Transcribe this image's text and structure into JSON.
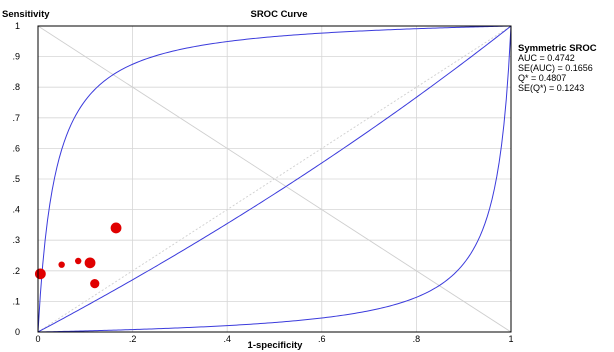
{
  "chart_data": {
    "type": "scatter",
    "title": "SROC Curve",
    "xlabel": "1-specificity",
    "ylabel": "Sensitivity",
    "xlim": [
      0,
      1
    ],
    "ylim": [
      0,
      1
    ],
    "x_ticks": [
      "0",
      ".2",
      ".4",
      ".6",
      ".8",
      "1"
    ],
    "y_ticks": [
      "0",
      ".1",
      ".2",
      ".3",
      ".4",
      ".5",
      ".6",
      ".7",
      ".8",
      ".9",
      "1"
    ],
    "grid": true,
    "legend": {
      "title": "Symmetric SROC",
      "lines": [
        "AUC = 0.4742",
        "SE(AUC) = 0.1656",
        "Q* = 0.4807",
        "SE(Q*) = 0.1243"
      ],
      "placement": "right"
    },
    "points": [
      {
        "x": 0.005,
        "y": 0.19,
        "weight": "large"
      },
      {
        "x": 0.05,
        "y": 0.22,
        "weight": "small"
      },
      {
        "x": 0.085,
        "y": 0.232,
        "weight": "small"
      },
      {
        "x": 0.11,
        "y": 0.226,
        "weight": "large"
      },
      {
        "x": 0.12,
        "y": 0.158,
        "weight": "medium"
      },
      {
        "x": 0.165,
        "y": 0.34,
        "weight": "large"
      }
    ],
    "curves": {
      "color": "#3b3bdc",
      "sroc_dor": 0.823,
      "upper_band_dor": 28,
      "lower_band_dor": 0.032
    },
    "colors": {
      "points": "#e00000",
      "curve": "#3b3bdc",
      "grid": "#d6d6d6",
      "reference": "#cfcfcf"
    }
  }
}
